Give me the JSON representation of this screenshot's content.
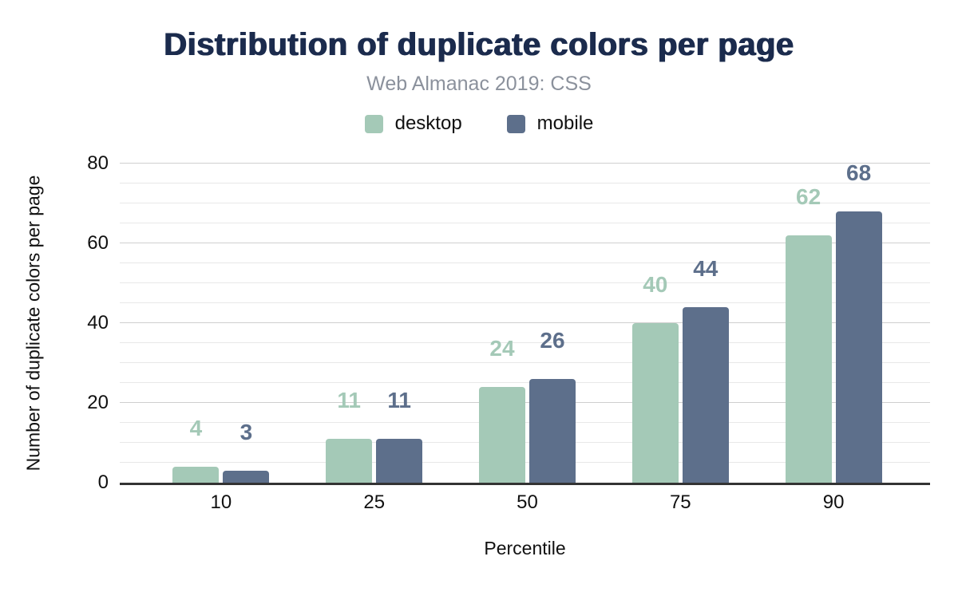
{
  "chart_data": {
    "type": "bar",
    "title": "Distribution of duplicate colors per page",
    "subtitle": "Web Almanac 2019: CSS",
    "xlabel": "Percentile",
    "ylabel": "Number of duplicate colors per page",
    "categories": [
      "10",
      "25",
      "50",
      "75",
      "90"
    ],
    "series": [
      {
        "name": "desktop",
        "color": "#a4c9b7",
        "values": [
          4,
          11,
          24,
          40,
          62
        ]
      },
      {
        "name": "mobile",
        "color": "#5d6f8b",
        "values": [
          3,
          11,
          26,
          44,
          68
        ]
      }
    ],
    "ylim": [
      0,
      80
    ],
    "yticks": [
      0,
      20,
      40,
      60,
      80
    ],
    "minor_grid_step": 5,
    "major_grid_step": 20,
    "grid": true,
    "legend_position": "top",
    "value_labels_shown": true
  },
  "style": {
    "title_color": "#1b2b4d",
    "subtitle_color": "#8b919c",
    "axis_text_color": "#111111",
    "axis_line_color": "#333333",
    "major_grid_color": "#cfcfcf",
    "minor_grid_color": "#e8e8e8",
    "background": "#ffffff"
  }
}
